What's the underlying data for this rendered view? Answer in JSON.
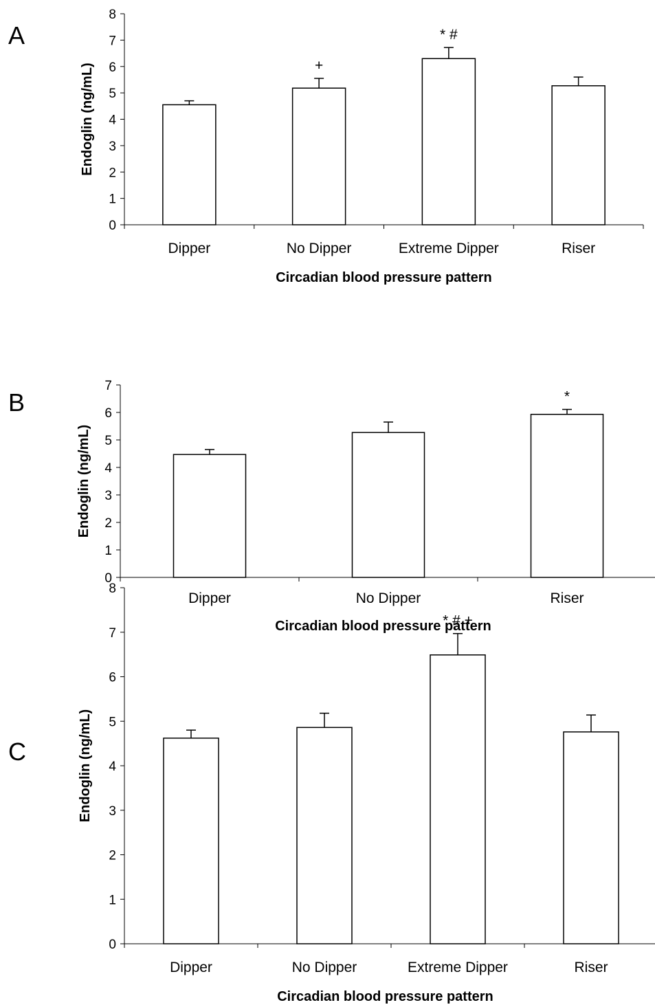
{
  "chart_data": [
    {
      "type": "bar",
      "panel_label": "A",
      "categories": [
        "Dipper",
        "No Dipper",
        "Extreme Dipper",
        "Riser"
      ],
      "values": [
        4.55,
        5.18,
        6.3,
        5.27
      ],
      "error": [
        0.15,
        0.37,
        0.42,
        0.33
      ],
      "annotations": [
        "",
        "+",
        "*  #",
        ""
      ],
      "ylabel": "Endoglin (ng/mL)",
      "xlabel": "Circadian blood pressure pattern",
      "ylim": [
        0,
        8
      ],
      "yticks": [
        "0",
        "1",
        "2",
        "3",
        "4",
        "5",
        "6",
        "7",
        "8"
      ],
      "grid": false
    },
    {
      "type": "bar",
      "panel_label": "B",
      "categories": [
        "Dipper",
        "No Dipper",
        "Riser"
      ],
      "values": [
        4.47,
        5.27,
        5.93
      ],
      "error": [
        0.18,
        0.38,
        0.18
      ],
      "annotations": [
        "",
        "",
        "*"
      ],
      "ylabel": "Endoglin (ng/mL)",
      "xlabel": "Circadian blood pressure pattern",
      "ylim": [
        0,
        7
      ],
      "yticks": [
        "0",
        "1",
        "2",
        "3",
        "4",
        "5",
        "6",
        "7"
      ],
      "grid": false
    },
    {
      "type": "bar",
      "panel_label": "C",
      "categories": [
        "Dipper",
        "No Dipper",
        "Extreme Dipper",
        "Riser"
      ],
      "values": [
        4.62,
        4.86,
        6.49,
        4.76
      ],
      "error": [
        0.18,
        0.32,
        0.48,
        0.38
      ],
      "annotations": [
        "",
        "",
        "* # +",
        ""
      ],
      "ylabel": "Endoglin (ng/mL)",
      "xlabel": "Circadian blood pressure pattern",
      "ylim": [
        0,
        8
      ],
      "yticks": [
        "0",
        "1",
        "2",
        "3",
        "4",
        "5",
        "6",
        "7",
        "8"
      ],
      "grid": false
    }
  ]
}
